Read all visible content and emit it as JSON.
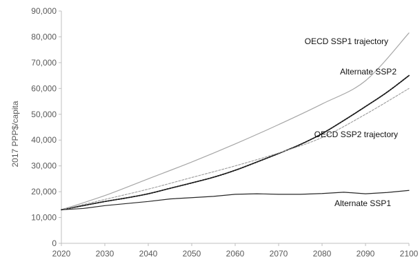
{
  "chart_data": {
    "type": "line",
    "title": "",
    "xlabel": "",
    "ylabel": "2017 PPP$/capita",
    "xlim": [
      2020,
      2100
    ],
    "ylim": [
      0,
      90000
    ],
    "x_ticks": [
      "2020",
      "2030",
      "2040",
      "2050",
      "2060",
      "2070",
      "2080",
      "2090",
      "2100"
    ],
    "y_ticks": [
      "0",
      "10,000",
      "20,000",
      "30,000",
      "40,000",
      "50,000",
      "60,000",
      "70,000",
      "80,000",
      "90,000"
    ],
    "grid": false,
    "legend": "none (series labelled directly on chart)",
    "series": [
      {
        "name": "OECD SSP1 trajectory",
        "style": "solid",
        "color": "#a6a6a6",
        "x": [
          2020,
          2030,
          2040,
          2050,
          2060,
          2070,
          2080,
          2090,
          2100
        ],
        "values": [
          13000,
          18500,
          25000,
          31500,
          38500,
          46000,
          54000,
          63000,
          81500
        ]
      },
      {
        "name": "Alternate SSP2",
        "style": "dotted",
        "color": "#1a1a1a",
        "x": [
          2020,
          2025,
          2030,
          2035,
          2040,
          2045,
          2050,
          2055,
          2060,
          2065,
          2070,
          2075,
          2080,
          2085,
          2090,
          2095,
          2100
        ],
        "values": [
          13000,
          14600,
          16200,
          17600,
          19200,
          21300,
          23400,
          25600,
          28300,
          31500,
          34800,
          38300,
          42500,
          47600,
          53000,
          58600,
          65000
        ]
      },
      {
        "name": "OECD SSP2 trajectory",
        "style": "dashed",
        "color": "#9a9a9a",
        "x": [
          2020,
          2030,
          2040,
          2050,
          2060,
          2070,
          2080,
          2090,
          2100
        ],
        "values": [
          13000,
          17000,
          21000,
          25500,
          30000,
          35000,
          41000,
          50000,
          60000
        ]
      },
      {
        "name": "Alternate SSP1",
        "style": "solid",
        "color": "#262626",
        "x": [
          2020,
          2025,
          2030,
          2035,
          2040,
          2045,
          2050,
          2055,
          2060,
          2065,
          2070,
          2075,
          2080,
          2085,
          2090,
          2095,
          2100
        ],
        "values": [
          13000,
          13500,
          14600,
          15400,
          16200,
          17200,
          17700,
          18200,
          19000,
          19200,
          19000,
          19000,
          19300,
          19800,
          19200,
          19700,
          20500
        ]
      }
    ]
  }
}
